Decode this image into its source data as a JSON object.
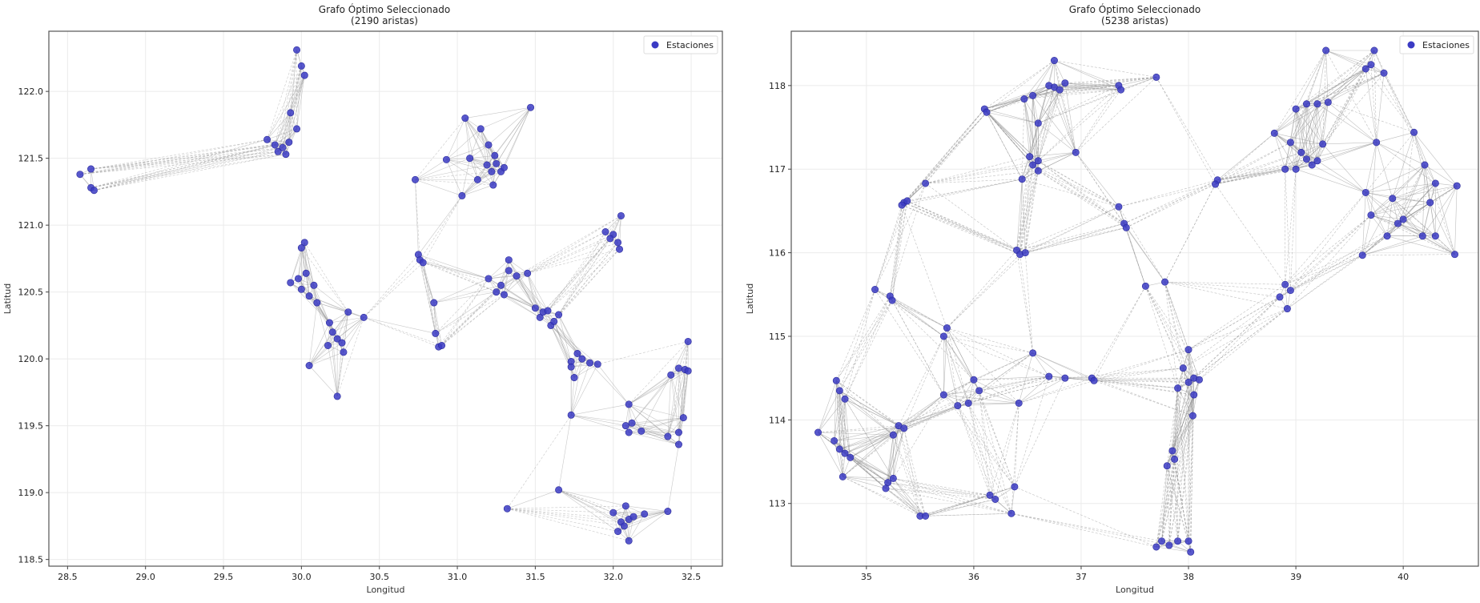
{
  "chart_data": [
    {
      "type": "scatter",
      "subtype": "network-graph",
      "title": "Grafo Óptimo Seleccionado",
      "subtitle": "(2190 aristas)",
      "xlabel": "Longitud",
      "ylabel": "Latitud",
      "xlim": [
        28.38,
        32.7
      ],
      "ylim": [
        118.45,
        122.45
      ],
      "xticks": [
        28.5,
        29.0,
        29.5,
        30.0,
        30.5,
        31.0,
        31.5,
        32.0,
        32.5
      ],
      "yticks": [
        118.5,
        119.0,
        119.5,
        120.0,
        120.5,
        121.0,
        121.5,
        122.0
      ],
      "xtick_labels": [
        "28.5",
        "29.0",
        "29.5",
        "30.0",
        "30.5",
        "31.0",
        "31.5",
        "32.0",
        "32.5"
      ],
      "ytick_labels": [
        "118.5",
        "119.0",
        "119.5",
        "120.0",
        "120.5",
        "121.0",
        "121.5",
        "122.0"
      ],
      "grid": true,
      "legend": {
        "label": "Estaciones",
        "placement": "top-right"
      },
      "node_color": "#3b3bc4",
      "edge_color": "#9a9a9a",
      "edge_count": 2190,
      "nodes": [
        [
          28.58,
          121.38
        ],
        [
          28.65,
          121.42
        ],
        [
          28.65,
          121.28
        ],
        [
          28.67,
          121.26
        ],
        [
          29.97,
          122.31
        ],
        [
          30.0,
          122.19
        ],
        [
          30.02,
          122.12
        ],
        [
          29.93,
          121.84
        ],
        [
          29.97,
          121.72
        ],
        [
          29.78,
          121.64
        ],
        [
          29.85,
          121.55
        ],
        [
          29.88,
          121.58
        ],
        [
          29.92,
          121.62
        ],
        [
          29.83,
          121.6
        ],
        [
          29.9,
          121.53
        ],
        [
          30.02,
          120.87
        ],
        [
          30.0,
          120.83
        ],
        [
          29.93,
          120.57
        ],
        [
          29.98,
          120.6
        ],
        [
          30.03,
          120.64
        ],
        [
          30.0,
          120.52
        ],
        [
          30.05,
          120.47
        ],
        [
          30.08,
          120.55
        ],
        [
          30.1,
          120.42
        ],
        [
          30.18,
          120.27
        ],
        [
          30.2,
          120.2
        ],
        [
          30.23,
          120.15
        ],
        [
          30.26,
          120.12
        ],
        [
          30.3,
          120.35
        ],
        [
          30.4,
          120.31
        ],
        [
          30.17,
          120.1
        ],
        [
          30.27,
          120.05
        ],
        [
          30.05,
          119.95
        ],
        [
          30.23,
          119.72
        ],
        [
          30.73,
          121.34
        ],
        [
          31.05,
          121.8
        ],
        [
          30.93,
          121.49
        ],
        [
          31.08,
          121.5
        ],
        [
          31.15,
          121.72
        ],
        [
          31.2,
          121.6
        ],
        [
          31.24,
          121.52
        ],
        [
          31.25,
          121.46
        ],
        [
          31.19,
          121.45
        ],
        [
          31.22,
          121.4
        ],
        [
          31.28,
          121.4
        ],
        [
          31.3,
          121.43
        ],
        [
          31.13,
          121.34
        ],
        [
          31.23,
          121.3
        ],
        [
          31.03,
          121.22
        ],
        [
          31.47,
          121.88
        ],
        [
          32.05,
          121.07
        ],
        [
          31.95,
          120.95
        ],
        [
          32.0,
          120.93
        ],
        [
          32.03,
          120.87
        ],
        [
          32.04,
          120.82
        ],
        [
          31.98,
          120.9
        ],
        [
          30.75,
          120.78
        ],
        [
          30.76,
          120.74
        ],
        [
          30.78,
          120.72
        ],
        [
          30.85,
          120.42
        ],
        [
          30.86,
          120.19
        ],
        [
          30.88,
          120.09
        ],
        [
          30.9,
          120.1
        ],
        [
          31.2,
          120.6
        ],
        [
          31.28,
          120.55
        ],
        [
          31.33,
          120.66
        ],
        [
          31.33,
          120.74
        ],
        [
          31.38,
          120.62
        ],
        [
          31.45,
          120.64
        ],
        [
          31.25,
          120.5
        ],
        [
          31.3,
          120.48
        ],
        [
          31.5,
          120.38
        ],
        [
          31.53,
          120.31
        ],
        [
          31.55,
          120.35
        ],
        [
          31.58,
          120.36
        ],
        [
          31.65,
          120.33
        ],
        [
          31.6,
          120.25
        ],
        [
          31.62,
          120.28
        ],
        [
          31.73,
          119.98
        ],
        [
          31.77,
          120.04
        ],
        [
          31.8,
          120.0
        ],
        [
          31.85,
          119.97
        ],
        [
          31.73,
          119.94
        ],
        [
          31.75,
          119.86
        ],
        [
          31.9,
          119.96
        ],
        [
          32.48,
          120.13
        ],
        [
          32.42,
          119.93
        ],
        [
          32.46,
          119.92
        ],
        [
          32.48,
          119.91
        ],
        [
          32.37,
          119.88
        ],
        [
          32.1,
          119.66
        ],
        [
          32.45,
          119.56
        ],
        [
          32.42,
          119.45
        ],
        [
          32.42,
          119.36
        ],
        [
          32.35,
          119.42
        ],
        [
          32.12,
          119.52
        ],
        [
          32.18,
          119.46
        ],
        [
          32.08,
          119.5
        ],
        [
          32.1,
          119.45
        ],
        [
          31.73,
          119.58
        ],
        [
          31.65,
          119.02
        ],
        [
          31.32,
          118.88
        ],
        [
          32.2,
          118.84
        ],
        [
          32.0,
          118.85
        ],
        [
          32.05,
          118.78
        ],
        [
          32.07,
          118.75
        ],
        [
          32.1,
          118.8
        ],
        [
          32.13,
          118.82
        ],
        [
          32.08,
          118.9
        ],
        [
          32.03,
          118.71
        ],
        [
          32.1,
          118.64
        ],
        [
          32.35,
          118.86
        ]
      ]
    },
    {
      "type": "scatter",
      "subtype": "network-graph",
      "title": "Grafo Óptimo Seleccionado",
      "subtitle": "(5238 aristas)",
      "xlabel": "Longitud",
      "ylabel": "Latitud",
      "xlim": [
        34.3,
        40.7
      ],
      "ylim": [
        112.25,
        118.65
      ],
      "xticks": [
        35,
        36,
        37,
        38,
        39,
        40
      ],
      "yticks": [
        113,
        114,
        115,
        116,
        117,
        118
      ],
      "xtick_labels": [
        "35",
        "36",
        "37",
        "38",
        "39",
        "40"
      ],
      "ytick_labels": [
        "113",
        "114",
        "115",
        "116",
        "117",
        "118"
      ],
      "grid": true,
      "legend": {
        "label": "Estaciones",
        "placement": "top-right"
      },
      "node_color": "#3b3bc4",
      "edge_color": "#8a8a8a",
      "edge_count": 5238,
      "nodes": [
        [
          36.1,
          117.72
        ],
        [
          36.12,
          117.68
        ],
        [
          36.47,
          117.84
        ],
        [
          36.75,
          118.3
        ],
        [
          36.7,
          118.0
        ],
        [
          36.75,
          117.98
        ],
        [
          36.8,
          117.95
        ],
        [
          36.55,
          117.88
        ],
        [
          36.85,
          118.03
        ],
        [
          37.35,
          118.0
        ],
        [
          37.37,
          117.95
        ],
        [
          37.7,
          118.1
        ],
        [
          36.6,
          117.55
        ],
        [
          36.52,
          117.15
        ],
        [
          36.6,
          117.1
        ],
        [
          36.55,
          117.05
        ],
        [
          36.6,
          116.98
        ],
        [
          36.45,
          116.88
        ],
        [
          36.95,
          117.2
        ],
        [
          35.55,
          116.83
        ],
        [
          35.35,
          116.6
        ],
        [
          35.33,
          116.57
        ],
        [
          35.38,
          116.62
        ],
        [
          36.4,
          116.03
        ],
        [
          36.43,
          115.98
        ],
        [
          36.48,
          116.0
        ],
        [
          37.35,
          116.55
        ],
        [
          37.4,
          116.35
        ],
        [
          37.42,
          116.3
        ],
        [
          37.78,
          115.65
        ],
        [
          37.6,
          115.6
        ],
        [
          35.08,
          115.56
        ],
        [
          35.22,
          115.48
        ],
        [
          35.24,
          115.43
        ],
        [
          38.27,
          116.87
        ],
        [
          38.25,
          116.82
        ],
        [
          38.8,
          117.43
        ],
        [
          38.95,
          117.32
        ],
        [
          39.05,
          117.2
        ],
        [
          39.1,
          117.12
        ],
        [
          38.9,
          117.0
        ],
        [
          39.15,
          117.05
        ],
        [
          39.2,
          117.1
        ],
        [
          39.0,
          117.0
        ],
        [
          39.25,
          117.3
        ],
        [
          39.0,
          117.72
        ],
        [
          39.1,
          117.78
        ],
        [
          39.2,
          117.78
        ],
        [
          39.3,
          117.8
        ],
        [
          39.28,
          118.42
        ],
        [
          39.73,
          118.42
        ],
        [
          39.65,
          118.2
        ],
        [
          39.7,
          118.25
        ],
        [
          39.82,
          118.15
        ],
        [
          39.75,
          117.32
        ],
        [
          40.1,
          117.44
        ],
        [
          40.2,
          117.05
        ],
        [
          40.3,
          116.83
        ],
        [
          39.65,
          116.72
        ],
        [
          39.9,
          116.65
        ],
        [
          40.25,
          116.6
        ],
        [
          40.5,
          116.8
        ],
        [
          39.7,
          116.45
        ],
        [
          39.95,
          116.35
        ],
        [
          40.0,
          116.4
        ],
        [
          39.85,
          116.2
        ],
        [
          40.18,
          116.2
        ],
        [
          40.3,
          116.2
        ],
        [
          40.48,
          115.98
        ],
        [
          39.62,
          115.97
        ],
        [
          38.85,
          115.47
        ],
        [
          38.95,
          115.55
        ],
        [
          38.9,
          115.62
        ],
        [
          38.92,
          115.33
        ],
        [
          38.0,
          114.84
        ],
        [
          38.05,
          114.5
        ],
        [
          38.0,
          114.45
        ],
        [
          37.95,
          114.62
        ],
        [
          38.1,
          114.48
        ],
        [
          38.05,
          114.3
        ],
        [
          38.04,
          114.05
        ],
        [
          37.9,
          114.38
        ],
        [
          37.85,
          113.63
        ],
        [
          37.87,
          113.53
        ],
        [
          37.8,
          113.45
        ],
        [
          37.7,
          112.48
        ],
        [
          37.75,
          112.55
        ],
        [
          37.82,
          112.5
        ],
        [
          37.9,
          112.55
        ],
        [
          38.0,
          112.55
        ],
        [
          38.02,
          112.42
        ],
        [
          37.1,
          114.5
        ],
        [
          37.12,
          114.47
        ],
        [
          36.85,
          114.5
        ],
        [
          36.7,
          114.52
        ],
        [
          36.55,
          114.8
        ],
        [
          36.42,
          114.2
        ],
        [
          36.0,
          114.48
        ],
        [
          36.05,
          114.35
        ],
        [
          35.95,
          114.2
        ],
        [
          35.85,
          114.17
        ],
        [
          35.72,
          114.3
        ],
        [
          35.75,
          115.1
        ],
        [
          35.72,
          115.0
        ],
        [
          34.55,
          113.85
        ],
        [
          34.7,
          113.75
        ],
        [
          34.72,
          114.47
        ],
        [
          34.75,
          114.35
        ],
        [
          34.8,
          114.25
        ],
        [
          34.75,
          113.65
        ],
        [
          34.8,
          113.6
        ],
        [
          34.85,
          113.55
        ],
        [
          34.78,
          113.32
        ],
        [
          35.3,
          113.93
        ],
        [
          35.25,
          113.82
        ],
        [
          35.35,
          113.9
        ],
        [
          35.2,
          113.25
        ],
        [
          35.25,
          113.3
        ],
        [
          35.18,
          113.18
        ],
        [
          35.5,
          112.85
        ],
        [
          35.55,
          112.85
        ],
        [
          36.15,
          113.1
        ],
        [
          36.2,
          113.05
        ],
        [
          36.38,
          113.2
        ],
        [
          36.35,
          112.88
        ]
      ]
    }
  ]
}
